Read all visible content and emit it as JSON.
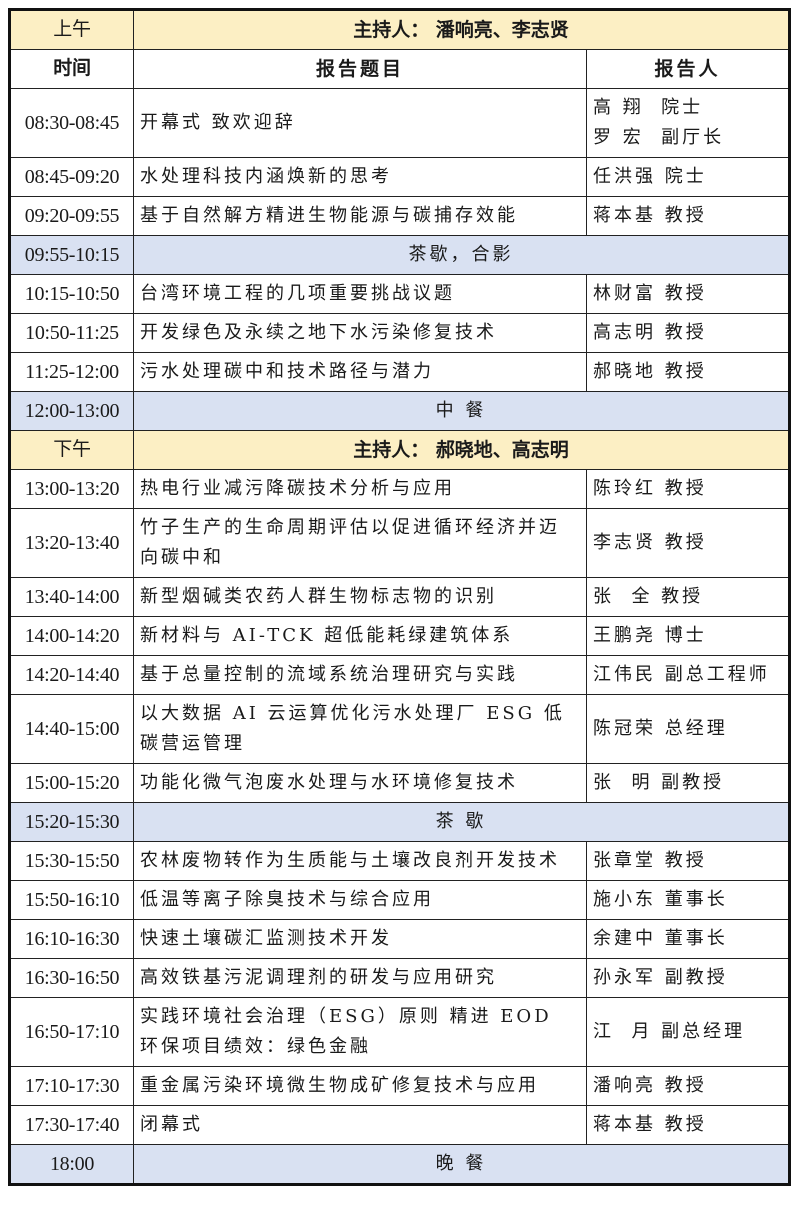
{
  "colors": {
    "section_bg": "#fcefc4",
    "break_bg": "#d9e1f2",
    "border": "#222222"
  },
  "rows": [
    {
      "type": "section",
      "label": "上午",
      "host": "主持人：  潘响亮、李志贤"
    },
    {
      "type": "header",
      "time": "时间",
      "title": "报告题目",
      "speaker": "报告人"
    },
    {
      "type": "talk",
      "time": "08:30-08:45",
      "title": "开幕式 致欢迎辞",
      "speaker": "高 翔  院士\n罗 宏  副厅长"
    },
    {
      "type": "talk",
      "time": "08:45-09:20",
      "title": "水处理科技内涵焕新的思考",
      "speaker": "任洪强 院士"
    },
    {
      "type": "talk",
      "time": "09:20-09:55",
      "title": "基于自然解方精进生物能源与碳捕存效能",
      "speaker": "蒋本基 教授"
    },
    {
      "type": "break",
      "time": "09:55-10:15",
      "label": "茶歇，合影"
    },
    {
      "type": "talk",
      "time": "10:15-10:50",
      "title": "台湾环境工程的几项重要挑战议题",
      "speaker": "林财富 教授"
    },
    {
      "type": "talk",
      "time": "10:50-11:25",
      "title": "开发绿色及永续之地下水污染修复技术",
      "speaker": "高志明 教授"
    },
    {
      "type": "talk",
      "time": "11:25-12:00",
      "title": "污水处理碳中和技术路径与潜力",
      "speaker": "郝晓地 教授"
    },
    {
      "type": "break",
      "time": "12:00-13:00",
      "label": "中  餐"
    },
    {
      "type": "section",
      "label": "下午",
      "host": "主持人：  郝晓地、高志明"
    },
    {
      "type": "talk",
      "time": "13:00-13:20",
      "title": "热电行业减污降碳技术分析与应用",
      "speaker": "陈玲红 教授"
    },
    {
      "type": "talk",
      "time": "13:20-13:40",
      "title": "竹子生产的生命周期评估以促进循环经济并迈向碳中和",
      "speaker": "李志贤 教授"
    },
    {
      "type": "talk",
      "time": "13:40-14:00",
      "title": "新型烟碱类农药人群生物标志物的识别",
      "speaker": "张  全 教授"
    },
    {
      "type": "talk",
      "time": "14:00-14:20",
      "title": "新材料与 AI-TCK 超低能耗绿建筑体系",
      "speaker": "王鹏尧 博士"
    },
    {
      "type": "talk",
      "time": "14:20-14:40",
      "title": "基于总量控制的流域系统治理研究与实践",
      "speaker": "江伟民 副总工程师"
    },
    {
      "type": "talk",
      "time": "14:40-15:00",
      "title": "以大数据 AI 云运算优化污水处理厂 ESG 低碳营运管理",
      "speaker": "陈冠荣 总经理"
    },
    {
      "type": "talk",
      "time": "15:00-15:20",
      "title": "功能化微气泡废水处理与水环境修复技术",
      "speaker": "张  明 副教授"
    },
    {
      "type": "break",
      "time": "15:20-15:30",
      "label": "茶  歇"
    },
    {
      "type": "talk",
      "time": "15:30-15:50",
      "title": "农林废物转作为生质能与土壤改良剂开发技术",
      "speaker": "张章堂 教授"
    },
    {
      "type": "talk",
      "time": "15:50-16:10",
      "title": "低温等离子除臭技术与综合应用",
      "speaker": "施小东 董事长"
    },
    {
      "type": "talk",
      "time": "16:10-16:30",
      "title": "快速土壤碳汇监测技术开发",
      "speaker": "余建中 董事长"
    },
    {
      "type": "talk",
      "time": "16:30-16:50",
      "title": "高效铁基污泥调理剂的研发与应用研究",
      "speaker": "孙永军 副教授"
    },
    {
      "type": "talk",
      "time": "16:50-17:10",
      "title": "实践环境社会治理（ESG）原则 精进 EOD 环保项目绩效：绿色金融",
      "speaker": "江  月 副总经理"
    },
    {
      "type": "talk",
      "time": "17:10-17:30",
      "title": "重金属污染环境微生物成矿修复技术与应用",
      "speaker": "潘响亮 教授"
    },
    {
      "type": "talk",
      "time": "17:30-17:40",
      "title": "闭幕式",
      "speaker": "蒋本基 教授"
    },
    {
      "type": "break",
      "time": "18:00",
      "label": "晚  餐"
    }
  ]
}
